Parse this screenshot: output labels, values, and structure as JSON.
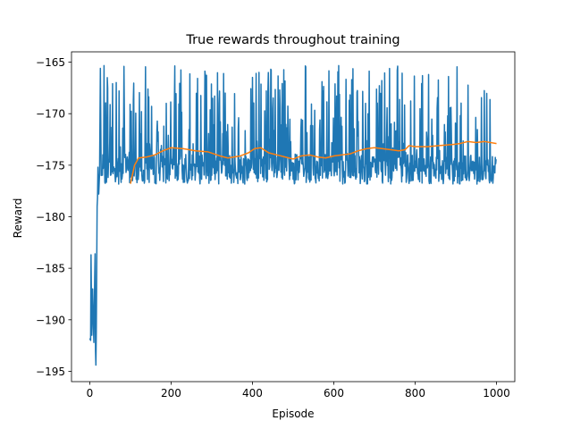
{
  "chart_data": {
    "type": "line",
    "title": "True rewards throughout training",
    "xlabel": "Episode",
    "ylabel": "Reward",
    "xlim": [
      -45,
      1045
    ],
    "ylim": [
      -196,
      -164
    ],
    "xticks": [
      0,
      200,
      400,
      600,
      800,
      1000
    ],
    "yticks": [
      -195,
      -190,
      -185,
      -180,
      -175,
      -170,
      -165
    ],
    "grid": false,
    "legend": "none",
    "series": [
      {
        "color": "#1f77b4",
        "n_points": 1000,
        "noise": {
          "seed": 7,
          "min": -177.1,
          "max": -165.3,
          "base": -175.4,
          "base_sd": 0.9,
          "spike_probability": 0.33,
          "spike_range": [
            -176.5,
            -165.3
          ]
        },
        "initial_points": [
          [
            0,
            -191.8
          ],
          [
            2,
            -192.0
          ],
          [
            3,
            -183.7
          ],
          [
            5,
            -191.5
          ],
          [
            7,
            -187.0
          ],
          [
            9,
            -190.8
          ],
          [
            10,
            -192.2
          ],
          [
            12,
            -186.0
          ],
          [
            13,
            -183.6
          ],
          [
            14,
            -193.0
          ],
          [
            15,
            -194.4
          ],
          [
            16,
            -191.0
          ],
          [
            17,
            -185.0
          ],
          [
            18,
            -179.0
          ],
          [
            19,
            -178.2
          ],
          [
            20,
            -175.2
          ],
          [
            22,
            -177.8
          ],
          [
            24,
            -175.8
          ],
          [
            26,
            -165.6
          ],
          [
            28,
            -176.0
          ],
          [
            30,
            -175.5
          ]
        ]
      },
      {
        "color": "#ff7f0e",
        "points": [
          [
            100,
            -176.8
          ],
          [
            110,
            -175.0
          ],
          [
            120,
            -174.3
          ],
          [
            140,
            -174.2
          ],
          [
            160,
            -174.0
          ],
          [
            180,
            -173.6
          ],
          [
            200,
            -173.3
          ],
          [
            230,
            -173.4
          ],
          [
            260,
            -173.6
          ],
          [
            290,
            -173.7
          ],
          [
            320,
            -174.1
          ],
          [
            340,
            -174.3
          ],
          [
            370,
            -174.1
          ],
          [
            390,
            -173.8
          ],
          [
            405,
            -173.4
          ],
          [
            420,
            -173.3
          ],
          [
            440,
            -173.8
          ],
          [
            460,
            -174.0
          ],
          [
            480,
            -174.2
          ],
          [
            500,
            -174.4
          ],
          [
            520,
            -174.1
          ],
          [
            540,
            -174.0
          ],
          [
            560,
            -174.2
          ],
          [
            580,
            -174.3
          ],
          [
            600,
            -174.1
          ],
          [
            620,
            -174.0
          ],
          [
            640,
            -173.9
          ],
          [
            660,
            -173.6
          ],
          [
            680,
            -173.4
          ],
          [
            700,
            -173.3
          ],
          [
            720,
            -173.4
          ],
          [
            740,
            -173.5
          ],
          [
            760,
            -173.6
          ],
          [
            775,
            -173.5
          ],
          [
            785,
            -173.1
          ],
          [
            800,
            -173.2
          ],
          [
            830,
            -173.2
          ],
          [
            860,
            -173.1
          ],
          [
            890,
            -173.0
          ],
          [
            910,
            -172.9
          ],
          [
            930,
            -172.7
          ],
          [
            950,
            -172.8
          ],
          [
            970,
            -172.7
          ],
          [
            1000,
            -172.9
          ]
        ]
      }
    ]
  }
}
